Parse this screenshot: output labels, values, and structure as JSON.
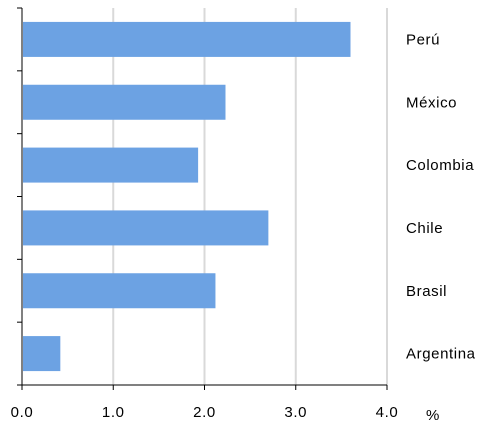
{
  "chart_data": {
    "type": "bar",
    "orientation": "horizontal",
    "categories": [
      "Perú",
      "México",
      "Colombia",
      "Chile",
      "Brasil",
      "Argentina"
    ],
    "values": [
      3.6,
      2.23,
      1.93,
      2.7,
      2.12,
      0.42
    ],
    "xlim": [
      0,
      4.0
    ],
    "x_ticks": [
      "0.0",
      "1.0",
      "2.0",
      "3.0",
      "4.0"
    ],
    "xlabel": "%",
    "ylabel": "",
    "title": "",
    "grid": "vertical",
    "legend": "none",
    "bar_color": "#6CA2E3",
    "grid_color": "#D9D9D9"
  }
}
